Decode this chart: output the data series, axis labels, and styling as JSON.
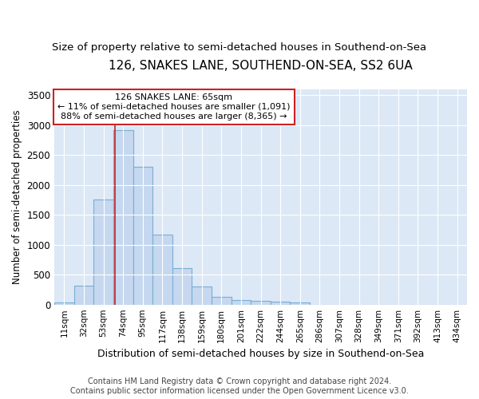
{
  "title": "126, SNAKES LANE, SOUTHEND-ON-SEA, SS2 6UA",
  "subtitle": "Size of property relative to semi-detached houses in Southend-on-Sea",
  "xlabel": "Distribution of semi-detached houses by size in Southend-on-Sea",
  "ylabel": "Number of semi-detached properties",
  "footer_line1": "Contains HM Land Registry data © Crown copyright and database right 2024.",
  "footer_line2": "Contains public sector information licensed under the Open Government Licence v3.0.",
  "annotation_line1": "126 SNAKES LANE: 65sqm",
  "annotation_line2": "← 11% of semi-detached houses are smaller (1,091)",
  "annotation_line3": "88% of semi-detached houses are larger (8,365) →",
  "bar_color": "#c5d8f0",
  "bar_edge_color": "#7aadd4",
  "ref_line_color": "#cc2222",
  "ref_line_x": 65,
  "categories": [
    "11sqm",
    "32sqm",
    "53sqm",
    "74sqm",
    "95sqm",
    "117sqm",
    "138sqm",
    "159sqm",
    "180sqm",
    "201sqm",
    "222sqm",
    "244sqm",
    "265sqm",
    "286sqm",
    "307sqm",
    "328sqm",
    "349sqm",
    "371sqm",
    "392sqm",
    "413sqm",
    "434sqm"
  ],
  "bin_edges": [
    0,
    21,
    42,
    63,
    84,
    105,
    126,
    147,
    168,
    189,
    210,
    231,
    252,
    273,
    294,
    315,
    336,
    357,
    378,
    399,
    420,
    441
  ],
  "values": [
    30,
    320,
    1760,
    2920,
    2300,
    1175,
    610,
    300,
    135,
    75,
    60,
    55,
    30,
    0,
    0,
    0,
    0,
    0,
    0,
    0,
    0
  ],
  "ylim": [
    0,
    3600
  ],
  "yticks": [
    0,
    500,
    1000,
    1500,
    2000,
    2500,
    3000,
    3500
  ],
  "background_color": "#ffffff",
  "plot_background": "#dce8f5",
  "grid_color": "#ffffff",
  "title_fontsize": 11,
  "subtitle_fontsize": 9.5,
  "annotation_fontsize": 8,
  "footer_fontsize": 7
}
